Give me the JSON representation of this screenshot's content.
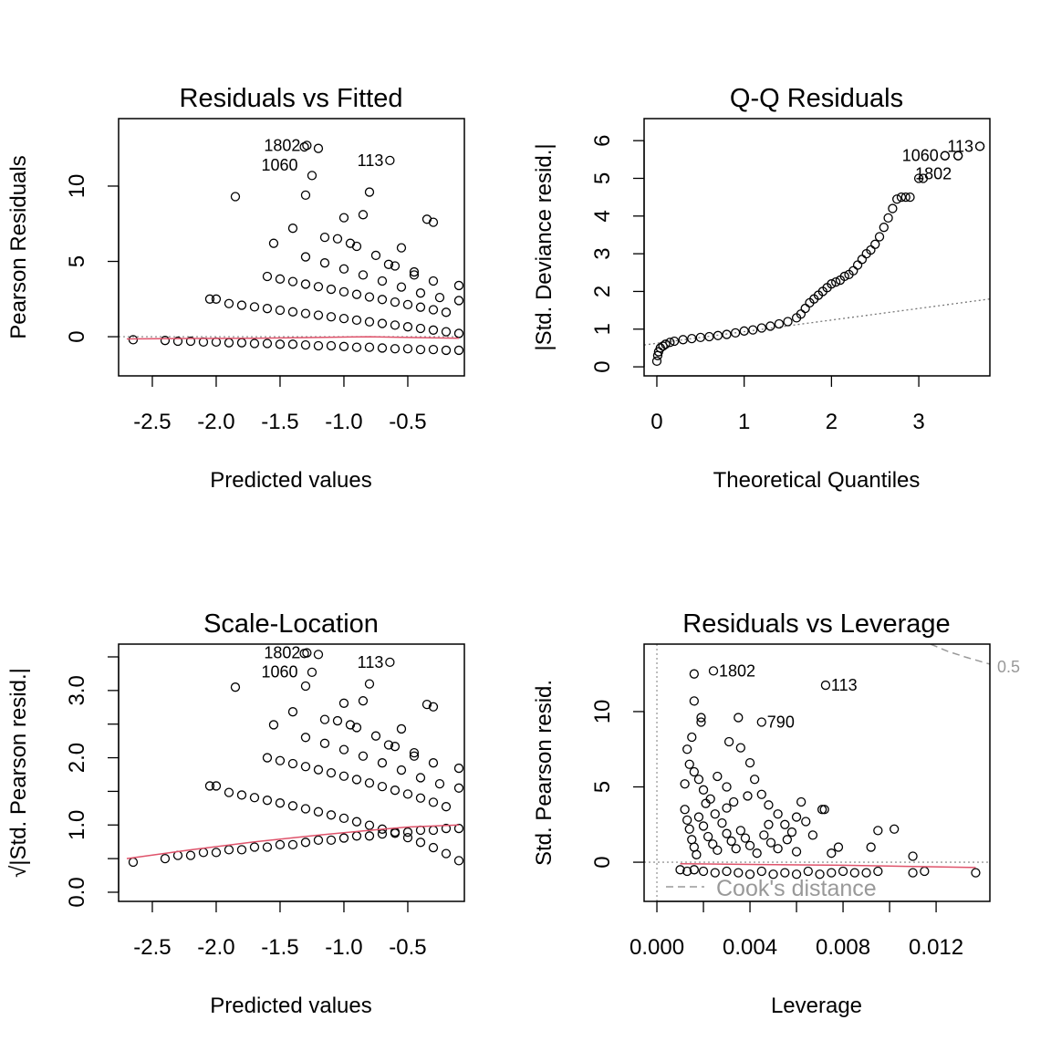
{
  "chart_data": [
    {
      "type": "scatter",
      "title": "Residuals vs Fitted",
      "xlabel": "Predicted values",
      "ylabel": "Pearson Residuals",
      "xlim": [
        -2.764,
        -0.057
      ],
      "ylim": [
        -2.6,
        14.48
      ],
      "xticks": [
        -2.5,
        -2.0,
        -1.5,
        -1.0,
        -0.5
      ],
      "xticklabels": [
        "-2.5",
        "-2.0",
        "-1.5",
        "-1.0",
        "-0.5"
      ],
      "yticks": [
        0,
        5,
        10
      ],
      "yticklabels": [
        "0",
        "5",
        "10"
      ],
      "hline": 0,
      "smooth": [
        [
          -2.7,
          -0.15
        ],
        [
          -2.2,
          -0.12
        ],
        [
          -1.7,
          -0.1
        ],
        [
          -1.2,
          -0.05
        ],
        [
          -0.8,
          0.0
        ],
        [
          -0.5,
          -0.05
        ],
        [
          -0.1,
          -0.1
        ]
      ],
      "points": [
        [
          -2.65,
          -0.2
        ],
        [
          -2.4,
          -0.25
        ],
        [
          -2.3,
          -0.3
        ],
        [
          -2.2,
          -0.3
        ],
        [
          -2.1,
          -0.35
        ],
        [
          -2.0,
          -0.35
        ],
        [
          -1.9,
          -0.4
        ],
        [
          -1.8,
          -0.4
        ],
        [
          -1.7,
          -0.45
        ],
        [
          -1.6,
          -0.45
        ],
        [
          -1.5,
          -0.5
        ],
        [
          -1.4,
          -0.5
        ],
        [
          -1.3,
          -0.55
        ],
        [
          -1.2,
          -0.6
        ],
        [
          -1.1,
          -0.6
        ],
        [
          -1.0,
          -0.65
        ],
        [
          -0.9,
          -0.7
        ],
        [
          -0.8,
          -0.7
        ],
        [
          -0.7,
          -0.75
        ],
        [
          -0.6,
          -0.8
        ],
        [
          -0.5,
          -0.8
        ],
        [
          -0.4,
          -0.85
        ],
        [
          -0.3,
          -0.85
        ],
        [
          -0.2,
          -0.9
        ],
        [
          -0.1,
          -0.9
        ],
        [
          -1.9,
          2.2
        ],
        [
          -1.8,
          2.09
        ],
        [
          -1.7,
          1.98
        ],
        [
          -1.6,
          1.87
        ],
        [
          -1.5,
          1.76
        ],
        [
          -1.4,
          1.65
        ],
        [
          -1.3,
          1.54
        ],
        [
          -1.2,
          1.43
        ],
        [
          -1.1,
          1.32
        ],
        [
          -1.0,
          1.21
        ],
        [
          -0.9,
          1.1
        ],
        [
          -0.8,
          0.99
        ],
        [
          -0.7,
          0.88
        ],
        [
          -0.6,
          0.77
        ],
        [
          -0.5,
          0.66
        ],
        [
          -0.4,
          0.55
        ],
        [
          -0.3,
          0.44
        ],
        [
          -0.2,
          0.33
        ],
        [
          -0.1,
          0.22
        ],
        [
          -1.6,
          4.0
        ],
        [
          -1.5,
          3.83
        ],
        [
          -1.4,
          3.66
        ],
        [
          -1.3,
          3.49
        ],
        [
          -1.2,
          3.32
        ],
        [
          -1.1,
          3.15
        ],
        [
          -1.0,
          2.98
        ],
        [
          -0.9,
          2.81
        ],
        [
          -0.8,
          2.64
        ],
        [
          -0.7,
          2.47
        ],
        [
          -0.6,
          2.3
        ],
        [
          -0.5,
          2.13
        ],
        [
          -0.4,
          1.96
        ],
        [
          -0.3,
          1.79
        ],
        [
          -0.2,
          1.62
        ],
        [
          -1.3,
          5.3
        ],
        [
          -1.15,
          4.9
        ],
        [
          -1.0,
          4.5
        ],
        [
          -0.85,
          4.1
        ],
        [
          -0.7,
          3.7
        ],
        [
          -0.55,
          3.3
        ],
        [
          -0.4,
          2.9
        ],
        [
          -0.25,
          2.6
        ],
        [
          -0.1,
          2.4
        ],
        [
          -1.05,
          6.5
        ],
        [
          -0.9,
          6.0
        ],
        [
          -0.75,
          5.4
        ],
        [
          -0.6,
          4.7
        ],
        [
          -0.45,
          4.3
        ],
        [
          -0.3,
          3.7
        ],
        [
          -0.1,
          3.4
        ],
        [
          -2.05,
          2.5
        ],
        [
          -2.0,
          2.5
        ],
        [
          -1.85,
          9.3
        ],
        [
          -1.55,
          6.2
        ],
        [
          -1.3,
          9.4
        ],
        [
          -1.25,
          10.7
        ],
        [
          -1.2,
          12.5
        ],
        [
          -1.0,
          7.9
        ],
        [
          -0.8,
          9.6
        ],
        [
          -0.85,
          8.1
        ],
        [
          -0.35,
          7.8
        ],
        [
          -0.3,
          7.6
        ],
        [
          -0.55,
          5.9
        ],
        [
          -0.45,
          4.1
        ],
        [
          -0.65,
          4.8
        ],
        [
          -1.4,
          7.2
        ],
        [
          -1.15,
          6.6
        ],
        [
          -0.95,
          6.2
        ]
      ],
      "labeled_points": [
        {
          "x": -1.29,
          "y": 12.7,
          "label": "1802"
        },
        {
          "x": -1.31,
          "y": 12.6,
          "label": "1060"
        },
        {
          "x": -0.64,
          "y": 11.7,
          "label": "113"
        }
      ]
    },
    {
      "type": "scatter",
      "title": "Q-Q Residuals",
      "xlabel": "Theoretical Quantiles",
      "ylabel": "|Std. Deviance resid.|",
      "xlim": [
        -0.146,
        3.814
      ],
      "ylim": [
        -0.24,
        6.585
      ],
      "xticks": [
        0,
        1,
        2,
        3
      ],
      "xticklabels": [
        "0",
        "1",
        "2",
        "3"
      ],
      "yticks": [
        0,
        1,
        2,
        3,
        4,
        5,
        6
      ],
      "yticklabels": [
        "0",
        "1",
        "2",
        "3",
        "4",
        "5",
        "6"
      ],
      "refline": [
        [
          -0.146,
          0.58
        ],
        [
          3.814,
          1.8
        ]
      ],
      "points": [
        [
          0,
          0.15
        ],
        [
          0.01,
          0.3
        ],
        [
          0.02,
          0.4
        ],
        [
          0.04,
          0.5
        ],
        [
          0.07,
          0.55
        ],
        [
          0.1,
          0.6
        ],
        [
          0.15,
          0.65
        ],
        [
          0.2,
          0.68
        ],
        [
          0.3,
          0.72
        ],
        [
          0.4,
          0.75
        ],
        [
          0.5,
          0.78
        ],
        [
          0.6,
          0.8
        ],
        [
          0.7,
          0.83
        ],
        [
          0.8,
          0.86
        ],
        [
          0.9,
          0.9
        ],
        [
          1.0,
          0.95
        ],
        [
          1.1,
          0.98
        ],
        [
          1.2,
          1.03
        ],
        [
          1.3,
          1.08
        ],
        [
          1.4,
          1.14
        ],
        [
          1.5,
          1.2
        ],
        [
          1.6,
          1.3
        ],
        [
          1.65,
          1.4
        ],
        [
          1.7,
          1.55
        ],
        [
          1.75,
          1.7
        ],
        [
          1.8,
          1.8
        ],
        [
          1.85,
          1.9
        ],
        [
          1.9,
          2.0
        ],
        [
          1.95,
          2.1
        ],
        [
          2.0,
          2.2
        ],
        [
          2.05,
          2.25
        ],
        [
          2.1,
          2.3
        ],
        [
          2.15,
          2.4
        ],
        [
          2.2,
          2.45
        ],
        [
          2.25,
          2.55
        ],
        [
          2.3,
          2.7
        ],
        [
          2.35,
          2.85
        ],
        [
          2.4,
          3.0
        ],
        [
          2.45,
          3.1
        ],
        [
          2.5,
          3.25
        ],
        [
          2.55,
          3.45
        ],
        [
          2.6,
          3.7
        ],
        [
          2.65,
          3.95
        ],
        [
          2.7,
          4.2
        ],
        [
          2.75,
          4.45
        ],
        [
          2.8,
          4.5
        ],
        [
          2.85,
          4.5
        ],
        [
          2.9,
          4.5
        ],
        [
          3.0,
          5.0
        ],
        [
          3.05,
          5.0
        ],
        [
          3.3,
          5.6
        ],
        [
          3.45,
          5.6
        ],
        [
          3.7,
          5.85
        ]
      ],
      "labeled_points": [
        {
          "x": 3.3,
          "y": 5.6,
          "label": "1060"
        },
        {
          "x": 3.45,
          "y": 5.6,
          "label": "1802"
        },
        {
          "x": 3.7,
          "y": 5.85,
          "label": "113"
        }
      ]
    },
    {
      "type": "scatter",
      "title": "Scale-Location",
      "xlabel": "Predicted values",
      "ylabel": "√|Std. Pearson resid.|",
      "transform": "sqrt(abs(residual)) of Residuals vs Fitted points",
      "xlim": [
        -2.764,
        -0.057
      ],
      "ylim": [
        -0.136,
        3.69
      ],
      "xticks": [
        -2.5,
        -2.0,
        -1.5,
        -1.0,
        -0.5
      ],
      "xticklabels": [
        "-2.5",
        "-2.0",
        "-1.5",
        "-1.0",
        "-0.5"
      ],
      "yticks": [
        0,
        0.5,
        1.0,
        1.5,
        2.0,
        2.5,
        3.0,
        3.5
      ],
      "yticklabels": [
        "0.0",
        "",
        "1.0",
        "",
        "2.0",
        "",
        "3.0",
        ""
      ],
      "smooth": [
        [
          -2.7,
          0.5
        ],
        [
          -2.2,
          0.63
        ],
        [
          -1.7,
          0.75
        ],
        [
          -1.2,
          0.85
        ],
        [
          -0.8,
          0.92
        ],
        [
          -0.5,
          0.97
        ],
        [
          -0.1,
          1.0
        ]
      ],
      "labeled_points": [
        {
          "x": -1.29,
          "y": 3.56,
          "label": "1802"
        },
        {
          "x": -1.31,
          "y": 3.55,
          "label": "1060"
        },
        {
          "x": -0.64,
          "y": 3.42,
          "label": "113"
        }
      ]
    },
    {
      "type": "scatter",
      "title": "Residuals vs Leverage",
      "xlabel": "Leverage",
      "ylabel": "Std. Pearson resid.",
      "xlim": [
        -0.00055,
        0.01431
      ],
      "ylim": [
        -2.6,
        14.48
      ],
      "xticks": [
        0,
        0.002,
        0.004,
        0.006,
        0.008,
        0.01,
        0.012
      ],
      "xticklabels": [
        "0.000",
        "",
        "0.004",
        "",
        "0.008",
        "",
        "0.012"
      ],
      "yticks": [
        0,
        5,
        10
      ],
      "yticklabels": [
        "0",
        "5",
        "10"
      ],
      "hline": 0,
      "vline": 0,
      "smooth": [
        [
          0.001,
          -0.1
        ],
        [
          0.004,
          -0.15
        ],
        [
          0.008,
          -0.2
        ],
        [
          0.011,
          -0.28
        ],
        [
          0.0137,
          -0.35
        ]
      ],
      "cooks_curve": [
        [
          0.01176,
          14.48
        ],
        [
          0.0125,
          14.0
        ],
        [
          0.0133,
          13.6
        ],
        [
          0.01431,
          13.15
        ]
      ],
      "cooks_label": "0.5",
      "legend": "Cook's distance",
      "points": [
        [
          0.001,
          -0.5
        ],
        [
          0.0013,
          -0.6
        ],
        [
          0.0016,
          -0.5
        ],
        [
          0.002,
          -0.6
        ],
        [
          0.0025,
          -0.7
        ],
        [
          0.003,
          -0.6
        ],
        [
          0.0035,
          -0.7
        ],
        [
          0.004,
          -0.8
        ],
        [
          0.0045,
          -0.6
        ],
        [
          0.005,
          -0.8
        ],
        [
          0.0055,
          -0.7
        ],
        [
          0.006,
          -0.8
        ],
        [
          0.0065,
          -0.6
        ],
        [
          0.007,
          -0.8
        ],
        [
          0.0075,
          -0.7
        ],
        [
          0.008,
          -0.6
        ],
        [
          0.0085,
          -0.7
        ],
        [
          0.009,
          -0.7
        ],
        [
          0.0095,
          -0.6
        ],
        [
          0.011,
          -0.7
        ],
        [
          0.0115,
          -0.6
        ],
        [
          0.0137,
          -0.7
        ],
        [
          0.0016,
          12.5
        ],
        [
          0.0016,
          10.7
        ],
        [
          0.0019,
          9.6
        ],
        [
          0.0019,
          9.3
        ],
        [
          0.0015,
          8.3
        ],
        [
          0.0013,
          7.5
        ],
        [
          0.0014,
          6.5
        ],
        [
          0.0012,
          5.2
        ],
        [
          0.0016,
          6.0
        ],
        [
          0.0018,
          5.5
        ],
        [
          0.002,
          4.8
        ],
        [
          0.0023,
          4.2
        ],
        [
          0.0026,
          5.7
        ],
        [
          0.003,
          5.0
        ],
        [
          0.0033,
          4.0
        ],
        [
          0.0036,
          7.6
        ],
        [
          0.004,
          6.6
        ],
        [
          0.0042,
          5.5
        ],
        [
          0.0045,
          4.5
        ],
        [
          0.0048,
          3.8
        ],
        [
          0.0052,
          3.2
        ],
        [
          0.0055,
          2.5
        ],
        [
          0.0058,
          2.0
        ],
        [
          0.006,
          3.0
        ],
        [
          0.0064,
          2.7
        ],
        [
          0.0067,
          1.8
        ],
        [
          0.0071,
          3.5
        ],
        [
          0.0072,
          3.5
        ],
        [
          0.0075,
          0.6
        ],
        [
          0.0078,
          1.0
        ],
        [
          0.0092,
          1.0
        ],
        [
          0.0095,
          2.1
        ],
        [
          0.0102,
          2.2
        ],
        [
          0.011,
          0.4
        ],
        [
          0.0012,
          3.5
        ],
        [
          0.0013,
          2.8
        ],
        [
          0.0014,
          2.2
        ],
        [
          0.0015,
          1.5
        ],
        [
          0.0016,
          1.0
        ],
        [
          0.0017,
          0.5
        ],
        [
          0.0018,
          3.0
        ],
        [
          0.002,
          2.4
        ],
        [
          0.0022,
          1.7
        ],
        [
          0.0024,
          1.2
        ],
        [
          0.0026,
          0.8
        ],
        [
          0.0028,
          2.6
        ],
        [
          0.003,
          1.9
        ],
        [
          0.0032,
          1.4
        ],
        [
          0.0034,
          0.9
        ],
        [
          0.0036,
          2.1
        ],
        [
          0.0038,
          1.6
        ],
        [
          0.004,
          1.1
        ],
        [
          0.0043,
          0.6
        ],
        [
          0.0046,
          1.8
        ],
        [
          0.0049,
          1.3
        ],
        [
          0.0052,
          0.9
        ],
        [
          0.0056,
          1.5
        ],
        [
          0.006,
          0.7
        ],
        [
          0.003,
          3.6
        ],
        [
          0.0025,
          3.2
        ],
        [
          0.0021,
          3.9
        ],
        [
          0.0039,
          4.4
        ],
        [
          0.0062,
          4.0
        ],
        [
          0.0048,
          2.5
        ],
        [
          0.0035,
          9.6
        ],
        [
          0.0031,
          8.0
        ]
      ],
      "labeled_points": [
        {
          "x": 0.00243,
          "y": 12.7,
          "label": "1802"
        },
        {
          "x": 0.00725,
          "y": 11.75,
          "label": "113"
        },
        {
          "x": 0.0045,
          "y": 9.3,
          "label": "790"
        }
      ]
    }
  ]
}
